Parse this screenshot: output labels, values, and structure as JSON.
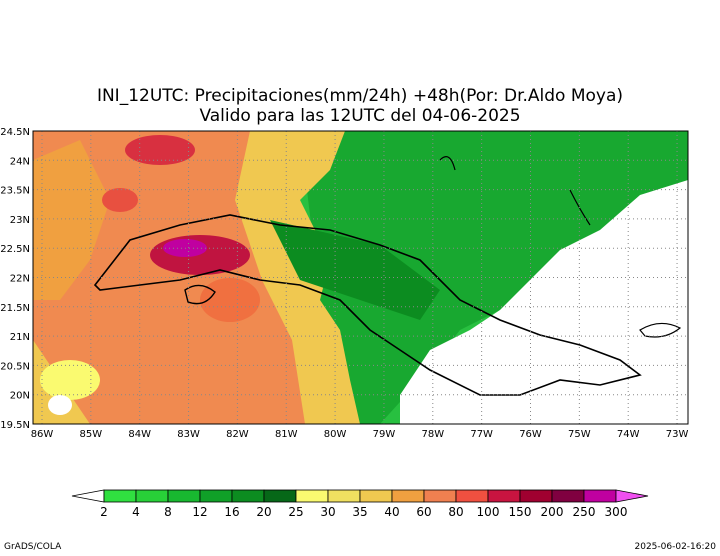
{
  "title": {
    "line1": "INI_12UTC: Precipitaciones(mm/24h) +48h(Por: Dr.Aldo Moya)",
    "line2": "Valido para las 12UTC del 04-06-2025"
  },
  "map": {
    "lat_labels": [
      "24.5N",
      "24N",
      "23.5N",
      "23N",
      "22.5N",
      "22N",
      "21.5N",
      "21N",
      "20.5N",
      "20N",
      "19.5N"
    ],
    "lon_labels": [
      "86W",
      "85W",
      "84W",
      "83W",
      "82W",
      "81W",
      "80W",
      "79W",
      "78W",
      "77W",
      "76W",
      "75W",
      "74W",
      "73W"
    ]
  },
  "colorbar": {
    "labels": [
      "2",
      "4",
      "8",
      "12",
      "16",
      "20",
      "25",
      "30",
      "35",
      "40",
      "60",
      "80",
      "100",
      "150",
      "200",
      "250",
      "300"
    ],
    "colors": [
      "#ffffff",
      "#30e040",
      "#28d038",
      "#18b830",
      "#10a028",
      "#0c8c20",
      "#066818",
      "#fafa70",
      "#f0e060",
      "#f0c850",
      "#f0a040",
      "#f08050",
      "#f05040",
      "#c81440",
      "#a00030",
      "#800040",
      "#c000a0",
      "#f050f0"
    ]
  },
  "footer": {
    "left": "GrADS/COLA",
    "right": "2025-06-02-16:20"
  }
}
